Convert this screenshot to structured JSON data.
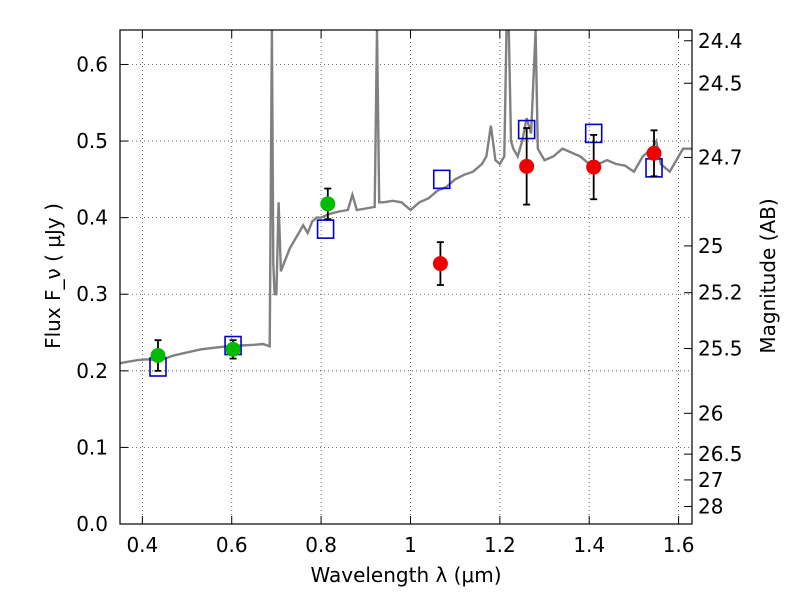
{
  "chart_data": {
    "type": "scatter",
    "xlabel": "Wavelength  λ (μm)",
    "ylabel_left": "Flux  F_ν  ( μJy )",
    "ylabel_right": "Magnitude (AB)",
    "xlim": [
      0.35,
      1.63
    ],
    "ylim": [
      0.0,
      0.645
    ],
    "grid": true,
    "x_ticks": [
      {
        "value": 0.4,
        "label": "0.4"
      },
      {
        "value": 0.6,
        "label": "0.6"
      },
      {
        "value": 0.8,
        "label": "0.8"
      },
      {
        "value": 1.0,
        "label": "1"
      },
      {
        "value": 1.2,
        "label": "1.2"
      },
      {
        "value": 1.4,
        "label": "1.4"
      },
      {
        "value": 1.6,
        "label": "1.6"
      }
    ],
    "y_ticks": [
      {
        "value": 0.0,
        "label": "0.0"
      },
      {
        "value": 0.1,
        "label": "0.1"
      },
      {
        "value": 0.2,
        "label": "0.2"
      },
      {
        "value": 0.3,
        "label": "0.3"
      },
      {
        "value": 0.4,
        "label": "0.4"
      },
      {
        "value": 0.5,
        "label": "0.5"
      },
      {
        "value": 0.6,
        "label": "0.6"
      }
    ],
    "magnitude_ticks": [
      {
        "value": 24.4,
        "label": "24.4"
      },
      {
        "value": 24.5,
        "label": "24.5"
      },
      {
        "value": 24.7,
        "label": "24.7"
      },
      {
        "value": 25.0,
        "label": "25"
      },
      {
        "value": 25.2,
        "label": "25.2"
      },
      {
        "value": 25.5,
        "label": "25.5"
      },
      {
        "value": 26.0,
        "label": "26"
      },
      {
        "value": 26.5,
        "label": "26.5"
      },
      {
        "value": 27.0,
        "label": "27"
      },
      {
        "value": 28.0,
        "label": "28"
      }
    ],
    "series": [
      {
        "type": "line",
        "color": "#808080",
        "points": [
          [
            0.35,
            0.21
          ],
          [
            0.37,
            0.212
          ],
          [
            0.39,
            0.214
          ],
          [
            0.41,
            0.215
          ],
          [
            0.43,
            0.214
          ],
          [
            0.45,
            0.216
          ],
          [
            0.47,
            0.22
          ],
          [
            0.5,
            0.224
          ],
          [
            0.53,
            0.228
          ],
          [
            0.56,
            0.23
          ],
          [
            0.59,
            0.232
          ],
          [
            0.62,
            0.233
          ],
          [
            0.65,
            0.234
          ],
          [
            0.67,
            0.235
          ],
          [
            0.685,
            0.232
          ],
          [
            0.69,
            0.645
          ],
          [
            0.693,
            0.34
          ],
          [
            0.696,
            0.3
          ],
          [
            0.7,
            0.3
          ],
          [
            0.705,
            0.42
          ],
          [
            0.71,
            0.33
          ],
          [
            0.72,
            0.345
          ],
          [
            0.73,
            0.36
          ],
          [
            0.74,
            0.37
          ],
          [
            0.75,
            0.38
          ],
          [
            0.76,
            0.39
          ],
          [
            0.77,
            0.38
          ],
          [
            0.78,
            0.395
          ],
          [
            0.79,
            0.4
          ],
          [
            0.8,
            0.4
          ],
          [
            0.82,
            0.405
          ],
          [
            0.84,
            0.408
          ],
          [
            0.86,
            0.41
          ],
          [
            0.87,
            0.43
          ],
          [
            0.88,
            0.41
          ],
          [
            0.9,
            0.412
          ],
          [
            0.92,
            0.414
          ],
          [
            0.925,
            0.645
          ],
          [
            0.93,
            0.42
          ],
          [
            0.94,
            0.42
          ],
          [
            0.96,
            0.422
          ],
          [
            0.98,
            0.42
          ],
          [
            1.0,
            0.41
          ],
          [
            1.02,
            0.42
          ],
          [
            1.04,
            0.425
          ],
          [
            1.06,
            0.435
          ],
          [
            1.08,
            0.44
          ],
          [
            1.1,
            0.45
          ],
          [
            1.12,
            0.456
          ],
          [
            1.14,
            0.46
          ],
          [
            1.16,
            0.47
          ],
          [
            1.17,
            0.48
          ],
          [
            1.18,
            0.52
          ],
          [
            1.19,
            0.475
          ],
          [
            1.2,
            0.47
          ],
          [
            1.21,
            0.48
          ],
          [
            1.215,
            0.645
          ],
          [
            1.22,
            0.645
          ],
          [
            1.225,
            0.5
          ],
          [
            1.23,
            0.49
          ],
          [
            1.24,
            0.48
          ],
          [
            1.25,
            0.5
          ],
          [
            1.26,
            0.53
          ],
          [
            1.27,
            0.51
          ],
          [
            1.28,
            0.645
          ],
          [
            1.285,
            0.49
          ],
          [
            1.3,
            0.475
          ],
          [
            1.32,
            0.48
          ],
          [
            1.34,
            0.49
          ],
          [
            1.36,
            0.485
          ],
          [
            1.38,
            0.48
          ],
          [
            1.4,
            0.47
          ],
          [
            1.42,
            0.47
          ],
          [
            1.44,
            0.475
          ],
          [
            1.46,
            0.47
          ],
          [
            1.48,
            0.468
          ],
          [
            1.5,
            0.46
          ],
          [
            1.52,
            0.48
          ],
          [
            1.54,
            0.49
          ],
          [
            1.55,
            0.5
          ],
          [
            1.56,
            0.47
          ],
          [
            1.58,
            0.46
          ],
          [
            1.6,
            0.48
          ],
          [
            1.61,
            0.49
          ],
          [
            1.63,
            0.49
          ]
        ]
      },
      {
        "type": "squares",
        "color": "#0000cc",
        "points": [
          [
            0.435,
            0.205
          ],
          [
            0.603,
            0.233
          ],
          [
            0.81,
            0.385
          ],
          [
            1.07,
            0.45
          ],
          [
            1.26,
            0.515
          ],
          [
            1.41,
            0.51
          ],
          [
            1.545,
            0.465
          ]
        ]
      },
      {
        "type": "errorbar",
        "color": "#00bb00",
        "points": [
          {
            "x": 0.435,
            "y": 0.22,
            "yerr": 0.02
          },
          {
            "x": 0.603,
            "y": 0.228,
            "yerr": 0.012
          },
          {
            "x": 0.815,
            "y": 0.418,
            "yerr": 0.02
          }
        ]
      },
      {
        "type": "errorbar",
        "color": "#ee0000",
        "points": [
          {
            "x": 1.067,
            "y": 0.34,
            "yerr": 0.028
          },
          {
            "x": 1.26,
            "y": 0.467,
            "yerr": 0.05
          },
          {
            "x": 1.41,
            "y": 0.466,
            "yerr": 0.042
          },
          {
            "x": 1.545,
            "y": 0.484,
            "yerr": 0.03
          }
        ]
      }
    ]
  }
}
